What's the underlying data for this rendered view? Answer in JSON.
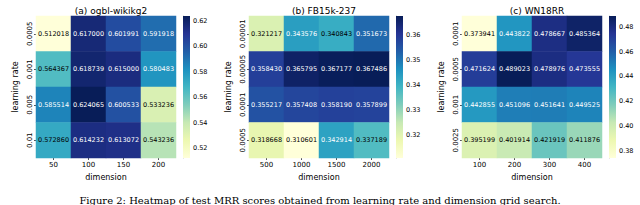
{
  "chart_data": [
    {
      "type": "heatmap",
      "title": "(a) ogbl-wikikg2",
      "x_label": "dimension",
      "y_label": "learning rate",
      "categories": [
        "50",
        "100",
        "150",
        "200"
      ],
      "y_categories": [
        "0.0005",
        "0.001",
        "0.005",
        "0.01"
      ],
      "values": [
        [
          0.512018,
          0.617,
          0.601991,
          0.591918
        ],
        [
          0.564367,
          0.618739,
          0.615,
          0.580483
        ],
        [
          0.585514,
          0.624065,
          0.600533,
          0.533236
        ],
        [
          0.57286,
          0.614232,
          0.613072,
          0.543236
        ]
      ],
      "value_labels": [
        [
          "0.512018",
          "0.617000",
          "0.601991",
          "0.591918"
        ],
        [
          "0.564367",
          "0.618739",
          "0.615000",
          "0.580483"
        ],
        [
          "0.585514",
          "0.624065",
          "0.600533",
          "0.533236"
        ],
        [
          "0.572860",
          "0.614232",
          "0.613072",
          "0.543236"
        ]
      ],
      "data_labels": true,
      "colorbar_range": [
        0.512018,
        0.624065
      ],
      "colorbar_ticks": [
        0.52,
        0.54,
        0.56,
        0.58,
        {
          "value": 0.6,
          "label": "0.60"
        },
        0.62
      ]
    },
    {
      "type": "heatmap",
      "title": "(b) FB15k-237",
      "x_label": "dimension",
      "y_label": "learning rate",
      "categories": [
        "500",
        "1000",
        "1500",
        "2000"
      ],
      "y_categories": [
        "0.00001",
        "0.00005",
        "0.0001",
        "0.0005"
      ],
      "values": [
        [
          0.321217,
          0.343576,
          0.340843,
          0.351673
        ],
        [
          0.35843,
          0.365795,
          0.367177,
          0.367486
        ],
        [
          0.355217,
          0.357408,
          0.35819,
          0.357899
        ],
        [
          0.318668,
          0.310601,
          0.342914,
          0.337189
        ]
      ],
      "value_labels": [
        [
          "0.321217",
          "0.343576",
          "0.340843",
          "0.351673"
        ],
        [
          "0.358430",
          "0.365795",
          "0.367177",
          "0.367486"
        ],
        [
          "0.355217",
          "0.357408",
          "0.358190",
          "0.357899"
        ],
        [
          "0.318668",
          "0.310601",
          "0.342914",
          "0.337189"
        ]
      ],
      "data_labels": true,
      "colorbar_range": [
        0.310601,
        0.367486
      ],
      "colorbar_ticks": [
        0.32,
        0.33,
        0.34,
        0.35,
        0.36
      ]
    },
    {
      "type": "heatmap",
      "title": "(c) WN18RR",
      "x_label": "dimension",
      "y_label": "learning rate",
      "categories": [
        "100",
        "200",
        "300",
        "400"
      ],
      "y_categories": [
        "0.0001",
        "0.0005",
        "0.001",
        "0.0025"
      ],
      "values": [
        [
          0.373941,
          0.443822,
          0.478667,
          0.485364
        ],
        [
          0.471624,
          0.489023,
          0.478976,
          0.473555
        ],
        [
          0.442855,
          0.451096,
          0.451641,
          0.449525
        ],
        [
          0.395199,
          0.401914,
          0.421919,
          0.411876
        ]
      ],
      "value_labels": [
        [
          "0.373941",
          "0.443822",
          "0.478667",
          "0.485364"
        ],
        [
          "0.471624",
          "0.489023",
          "0.478976",
          "0.473555"
        ],
        [
          "0.442855",
          "0.451096",
          "0.451641",
          "0.449525"
        ],
        [
          "0.395199",
          "0.401914",
          "0.421919",
          "0.411876"
        ]
      ],
      "data_labels": true,
      "colorbar_range": [
        0.373941,
        0.489023
      ],
      "colorbar_ticks": [
        0.38,
        {
          "value": 0.4,
          "label": "0.40"
        },
        0.42,
        0.44,
        0.46,
        0.48
      ]
    }
  ],
  "caption": "Figure 2: Heatmap of test MRR scores obtained from learning rate and dimension grid search."
}
